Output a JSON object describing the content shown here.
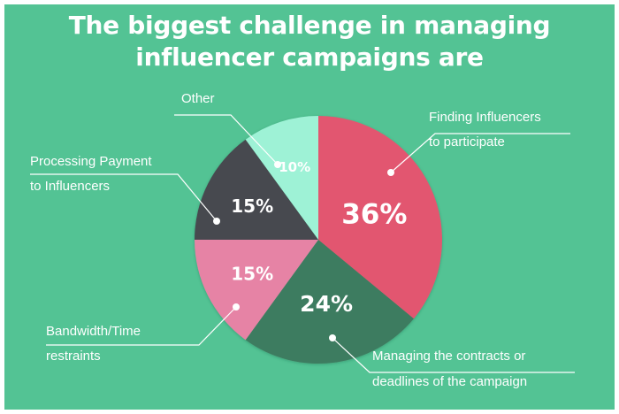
{
  "chart_data": {
    "type": "pie",
    "title_lines": [
      "The biggest challenge in managing",
      "influencer campaigns are"
    ],
    "slices": [
      {
        "name_lines": [
          "Finding Influencers",
          "to participate"
        ],
        "value": 36,
        "label": "36%",
        "color": "#e2566f"
      },
      {
        "name_lines": [
          "Managing the contracts or",
          "deadlines of the campaign"
        ],
        "value": 24,
        "label": "24%",
        "color": "#3e7c60"
      },
      {
        "name_lines": [
          "Bandwidth/Time",
          "restraints"
        ],
        "value": 15,
        "label": "15%",
        "color": "#e683a5"
      },
      {
        "name_lines": [
          "Processing Payment",
          "to Influencers"
        ],
        "value": 15,
        "label": "15%",
        "color": "#474a50"
      },
      {
        "name_lines": [
          "Other"
        ],
        "value": 10,
        "label": "10%",
        "color": "#9ef2d6"
      }
    ]
  },
  "colors": {
    "background": "#53c394",
    "text": "#ffffff"
  }
}
